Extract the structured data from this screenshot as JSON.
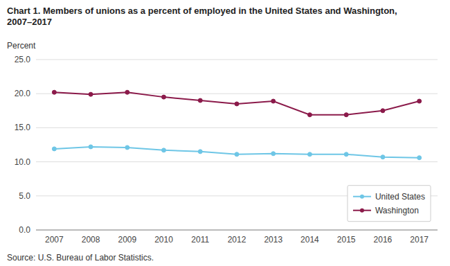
{
  "chart_data": {
    "type": "line",
    "title": "Chart 1. Members of unions as a percent of employed in the United States and Washington, 2007–2017",
    "y_label": "Percent",
    "source": "Source: U.S. Bureau of Labor Statistics.",
    "x": [
      2007,
      2008,
      2009,
      2010,
      2011,
      2012,
      2013,
      2014,
      2015,
      2016,
      2017
    ],
    "xlim": [
      2006.5,
      2017.5
    ],
    "xticks": [
      2007,
      2008,
      2009,
      2010,
      2011,
      2012,
      2013,
      2014,
      2015,
      2016,
      2017
    ],
    "ylim": [
      0.0,
      25.0
    ],
    "yticks": [
      {
        "value": 0.0,
        "label": "0.0"
      },
      {
        "value": 5.0,
        "label": "5.0"
      },
      {
        "value": 10.0,
        "label": "10.0"
      },
      {
        "value": 15.0,
        "label": "15.0"
      },
      {
        "value": 20.0,
        "label": "20.0"
      },
      {
        "value": 25.0,
        "label": "25.0"
      }
    ],
    "grid": true,
    "legend": "lower right",
    "series": [
      {
        "name": "United States",
        "color": "#6ec6e6",
        "marker": "circle",
        "line_style": "solid",
        "values": [
          11.9,
          12.2,
          12.1,
          11.7,
          11.5,
          11.1,
          11.2,
          11.1,
          11.1,
          10.7,
          10.6
        ]
      },
      {
        "name": "Washington",
        "color": "#8b1a4a",
        "marker": "circle",
        "line_style": "solid",
        "values": [
          20.2,
          19.9,
          20.2,
          19.5,
          19.0,
          18.5,
          18.9,
          16.9,
          16.9,
          17.5,
          18.9
        ]
      }
    ]
  }
}
